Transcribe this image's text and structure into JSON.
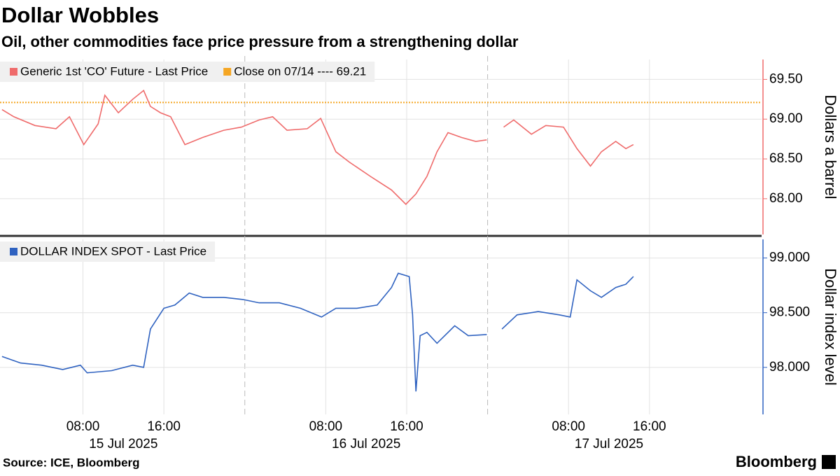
{
  "title": "Dollar Wobbles",
  "subtitle": "Oil, other commodities face price pressure from a strengthening dollar",
  "source": "Source: ICE, Bloomberg",
  "brand": "Bloomberg",
  "chart_data": [
    {
      "type": "line",
      "y_label": "Dollars a barrel",
      "ylim": [
        67.55,
        69.75
      ],
      "yticks": [
        {
          "value": 68,
          "label": "68.00"
        },
        {
          "value": 68.5,
          "label": "68.50"
        },
        {
          "value": 69,
          "label": "69.00"
        },
        {
          "value": 69.5,
          "label": "69.50"
        }
      ],
      "grid": true,
      "reference_line": {
        "name": "Close on 07/14 ---- 69.21",
        "value": 69.21,
        "color": "#f5a623"
      },
      "series": [
        {
          "name": "Generic 1st 'CO' Future - Last Price",
          "color": "#ef6b6b",
          "x": [
            "2025-07-15 00:00",
            "2025-07-15 01:10",
            "2025-07-15 03:15",
            "2025-07-15 05:20",
            "2025-07-15 06:40",
            "2025-07-15 08:05",
            "2025-07-15 09:30",
            "2025-07-15 10:10",
            "2025-07-15 11:30",
            "2025-07-15 12:55",
            "2025-07-15 14:00",
            "2025-07-15 14:40",
            "2025-07-15 15:40",
            "2025-07-15 16:40",
            "2025-07-15 18:05",
            "2025-07-15 19:50",
            "2025-07-15 21:55",
            "2025-07-15 23:40",
            "2025-07-16 01:25",
            "2025-07-16 02:45",
            "2025-07-16 04:10",
            "2025-07-16 06:10",
            "2025-07-16 07:30",
            "2025-07-16 09:00",
            "2025-07-16 10:20",
            "2025-07-16 12:25",
            "2025-07-16 14:30",
            "2025-07-16 15:55",
            "2025-07-16 16:55",
            "2025-07-16 18:00",
            "2025-07-16 19:00",
            "2025-07-16 20:05",
            "2025-07-16 21:25",
            "2025-07-16 22:50",
            "2025-07-16 23:55",
            "2025-07-17 00:30",
            "2025-07-17 01:35",
            "2025-07-17 02:35",
            "2025-07-17 04:20",
            "2025-07-17 05:45",
            "2025-07-17 07:30",
            "2025-07-17 08:50",
            "2025-07-17 10:10",
            "2025-07-17 11:15",
            "2025-07-17 12:40",
            "2025-07-17 13:40",
            "2025-07-17 14:25"
          ],
          "values": [
            69.12,
            69.03,
            68.92,
            68.88,
            69.03,
            68.68,
            68.94,
            69.3,
            69.08,
            69.25,
            69.36,
            69.16,
            69.08,
            69.03,
            68.68,
            68.77,
            68.86,
            68.9,
            68.99,
            69.03,
            68.86,
            68.88,
            69.01,
            68.59,
            68.46,
            68.28,
            68.11,
            67.93,
            68.06,
            68.28,
            68.59,
            68.83,
            68.77,
            68.72,
            68.74,
            null,
            68.9,
            68.99,
            68.81,
            68.92,
            68.9,
            68.63,
            68.41,
            68.59,
            68.72,
            68.63,
            68.68
          ]
        }
      ]
    },
    {
      "type": "line",
      "y_label": "Dollar index level",
      "ylim": [
        97.57,
        99.17
      ],
      "yticks": [
        {
          "value": 98,
          "label": "98.000"
        },
        {
          "value": 98.5,
          "label": "98.500"
        },
        {
          "value": 99,
          "label": "99.000"
        }
      ],
      "grid": true,
      "xlim": [
        "2025-07-14 23:48",
        "2025-07-18 03:05"
      ],
      "xticks": [
        {
          "value": "2025-07-15 08:00",
          "label": "08:00"
        },
        {
          "value": "2025-07-15 16:00",
          "label": "16:00"
        },
        {
          "value": "2025-07-16 08:00",
          "label": "08:00"
        },
        {
          "value": "2025-07-16 16:00",
          "label": "16:00"
        },
        {
          "value": "2025-07-17 08:00",
          "label": "08:00"
        },
        {
          "value": "2025-07-17 16:00",
          "label": "16:00"
        }
      ],
      "xdates": [
        {
          "value": "2025-07-15 12:00",
          "label": "15 Jul 2025"
        },
        {
          "value": "2025-07-16 12:00",
          "label": "16 Jul 2025"
        },
        {
          "value": "2025-07-17 12:00",
          "label": "17 Jul 2025"
        }
      ],
      "series": [
        {
          "name": "DOLLAR INDEX SPOT - Last Price",
          "color": "#2f62c0",
          "x": [
            "2025-07-15 00:00",
            "2025-07-15 01:50",
            "2025-07-15 03:55",
            "2025-07-15 06:00",
            "2025-07-15 07:45",
            "2025-07-15 08:25",
            "2025-07-15 10:50",
            "2025-07-15 12:55",
            "2025-07-15 14:00",
            "2025-07-15 14:40",
            "2025-07-15 16:00",
            "2025-07-15 17:05",
            "2025-07-15 18:30",
            "2025-07-15 19:50",
            "2025-07-15 21:55",
            "2025-07-15 23:50",
            "2025-07-16 01:25",
            "2025-07-16 03:25",
            "2025-07-16 05:30",
            "2025-07-16 07:35",
            "2025-07-16 09:00",
            "2025-07-16 11:05",
            "2025-07-16 13:05",
            "2025-07-16 14:30",
            "2025-07-16 15:10",
            "2025-07-16 16:15",
            "2025-07-16 16:35",
            "2025-07-16 16:55",
            "2025-07-16 17:20",
            "2025-07-16 18:00",
            "2025-07-16 19:00",
            "2025-07-16 20:45",
            "2025-07-16 22:05",
            "2025-07-16 23:55",
            "2025-07-17 00:30",
            "2025-07-17 01:25",
            "2025-07-17 02:55",
            "2025-07-17 05:00",
            "2025-07-17 07:05",
            "2025-07-17 08:10",
            "2025-07-17 08:50",
            "2025-07-17 10:10",
            "2025-07-17 11:15",
            "2025-07-17 12:40",
            "2025-07-17 13:40",
            "2025-07-17 14:25"
          ],
          "values": [
            98.1,
            98.04,
            98.02,
            97.98,
            98.02,
            97.95,
            97.97,
            98.02,
            98.0,
            98.35,
            98.54,
            98.57,
            98.68,
            98.64,
            98.64,
            98.62,
            98.59,
            98.59,
            98.54,
            98.46,
            98.54,
            98.54,
            98.57,
            98.73,
            98.86,
            98.83,
            98.48,
            97.78,
            98.29,
            98.32,
            98.22,
            98.38,
            98.29,
            98.3,
            null,
            98.35,
            98.48,
            98.51,
            98.48,
            98.46,
            98.8,
            98.7,
            98.64,
            98.73,
            98.76,
            98.83
          ]
        }
      ]
    }
  ]
}
